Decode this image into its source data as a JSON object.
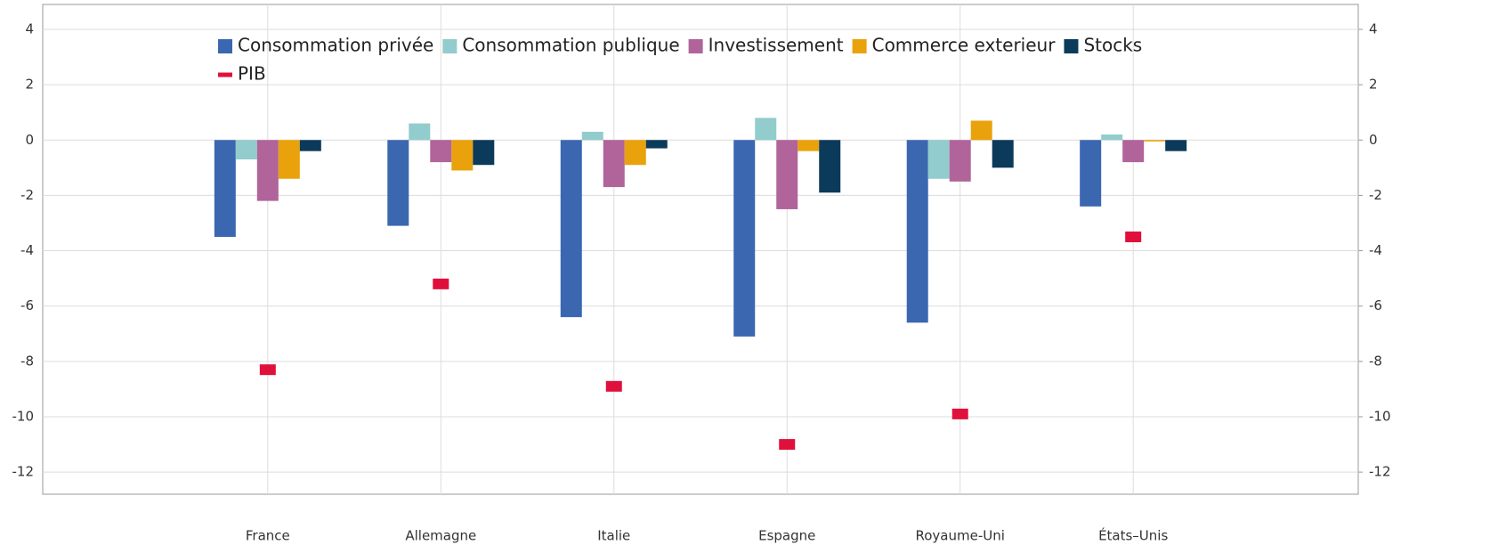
{
  "chart_data": {
    "type": "bar",
    "categories": [
      "France",
      "Allemagne",
      "Italie",
      "Espagne",
      "Royaume-Uni",
      "États–Unis"
    ],
    "series": [
      {
        "name": "Consommation privée",
        "color": "#3a67b0",
        "values": [
          -3.5,
          -3.1,
          -6.4,
          -7.1,
          -6.6,
          -2.4
        ]
      },
      {
        "name": "Consommation publique",
        "color": "#92cccc",
        "values": [
          -0.7,
          0.6,
          0.3,
          0.8,
          -1.4,
          0.2
        ]
      },
      {
        "name": "Investissement",
        "color": "#b0649a",
        "values": [
          -2.2,
          -0.8,
          -1.7,
          -2.5,
          -1.5,
          -0.8
        ]
      },
      {
        "name": "Commerce exterieur",
        "color": "#e9a20c",
        "values": [
          -1.4,
          -1.1,
          -0.9,
          -0.4,
          0.7,
          -0.05
        ]
      },
      {
        "name": "Stocks",
        "color": "#0c3a5a",
        "values": [
          -0.4,
          -0.9,
          -0.3,
          -1.9,
          -1.0,
          -0.4
        ]
      },
      {
        "name": "PIB",
        "color": "#e0103c",
        "type": "marker",
        "values": [
          -8.3,
          -5.2,
          -8.9,
          -11.0,
          -9.9,
          -3.5
        ]
      }
    ],
    "ylim": [
      -12.8,
      4.9
    ],
    "yticks": [
      4,
      2,
      0,
      -2,
      -4,
      -6,
      -8,
      -10,
      -12
    ],
    "y2lim": [
      -12.8,
      4.9
    ],
    "y2ticks": [
      4,
      2,
      0,
      -2,
      -4,
      -6,
      -8,
      -10,
      -12
    ],
    "grid": true
  }
}
